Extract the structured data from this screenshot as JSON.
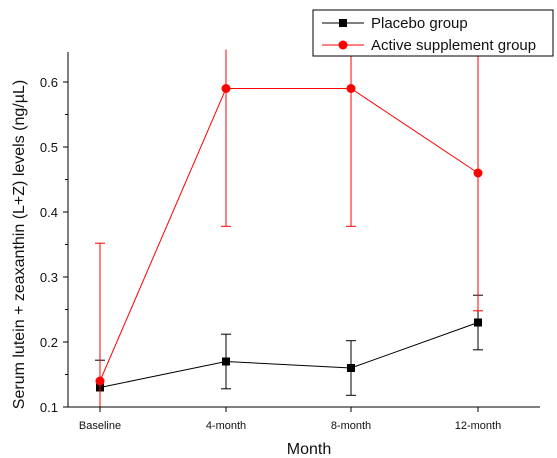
{
  "chart_data": {
    "type": "line",
    "title": "",
    "xlabel": "Month",
    "ylabel": "Serum lutein + zeaxanthin (L+Z) levels (ng/µL)",
    "categories": [
      "Baseline",
      "4-month",
      "8-month",
      "12-month"
    ],
    "ylim": [
      0.1,
      0.65
    ],
    "yticks": [
      "0.1",
      "0.2",
      "0.3",
      "0.4",
      "0.5",
      "0.6"
    ],
    "legend_position": "top-right",
    "grid": false,
    "series": [
      {
        "name": "Placebo group",
        "color": "#000000",
        "marker": "square",
        "values": [
          0.13,
          0.17,
          0.16,
          0.23
        ],
        "error_low": [
          0.1,
          0.128,
          0.118,
          0.188
        ],
        "error_high": [
          0.172,
          0.212,
          0.202,
          0.272
        ]
      },
      {
        "name": "Active supplement group",
        "color": "#ff0000",
        "marker": "circle",
        "values": [
          0.14,
          0.59,
          0.59,
          0.46
        ],
        "error_low": [
          0.1,
          0.378,
          0.378,
          0.248
        ],
        "error_high": [
          0.352,
          0.65,
          0.65,
          0.65
        ]
      }
    ]
  }
}
